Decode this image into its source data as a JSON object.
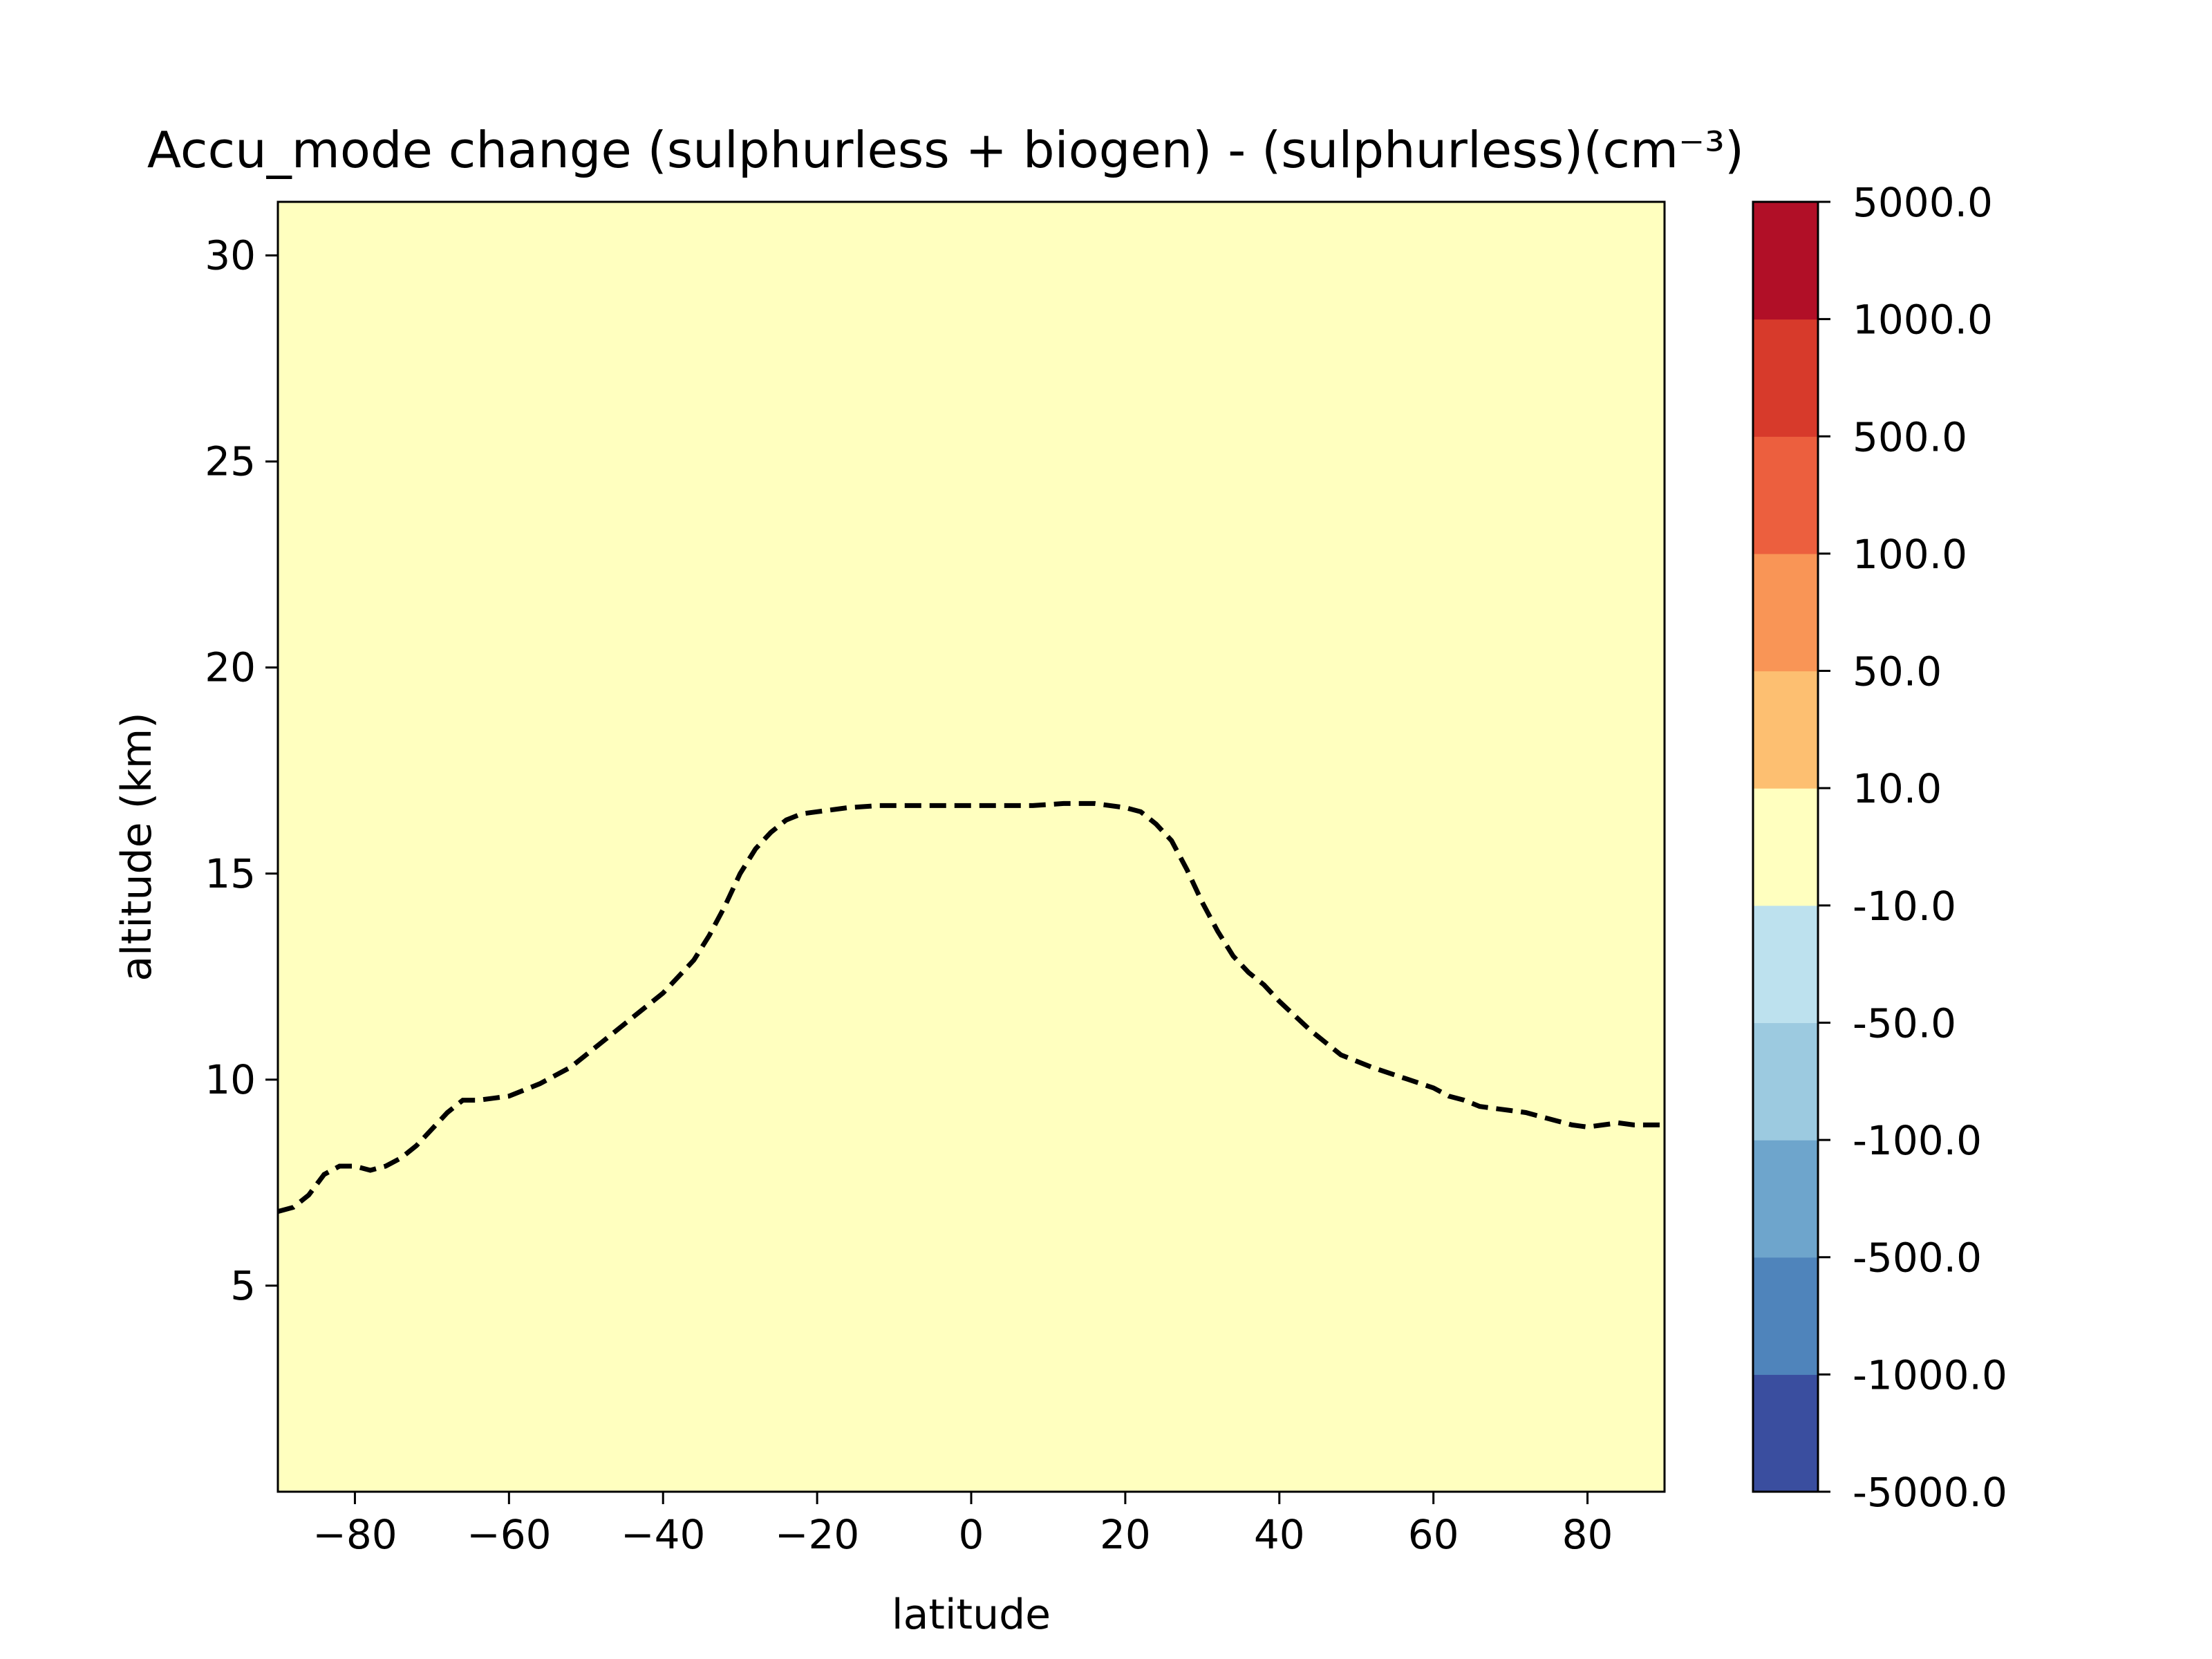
{
  "chart_data": {
    "type": "heatmap",
    "title": "Accu_mode change (sulphurless + biogen) - (sulphurless)(cm⁻³)",
    "xlabel": "latitude",
    "ylabel": "altitude (km)",
    "xlim": [
      -90,
      90
    ],
    "ylim": [
      0,
      31.3
    ],
    "xticks": [
      -80,
      -60,
      -40,
      -20,
      0,
      20,
      40,
      60,
      80
    ],
    "xtick_labels": [
      "−80",
      "−60",
      "−40",
      "−20",
      "0",
      "20",
      "40",
      "60",
      "80"
    ],
    "yticks": [
      5,
      10,
      15,
      20,
      25,
      30
    ],
    "ytick_labels": [
      "5",
      "10",
      "15",
      "20",
      "25",
      "30"
    ],
    "field_color": "#ffffbf",
    "field_level": "-10.0 to 10.0",
    "colorbar": {
      "levels": [
        "-5000.0",
        "-1000.0",
        "-500.0",
        "-100.0",
        "-50.0",
        "-10.0",
        "10.0",
        "50.0",
        "100.0",
        "500.0",
        "1000.0",
        "5000.0"
      ],
      "colors": [
        "#3a4e9f",
        "#4f84bb",
        "#6ea5cc",
        "#9ccae0",
        "#bde1ee",
        "#ffffbf",
        "#fdbf71",
        "#f99556",
        "#ec5f3e",
        "#d73a2b",
        "#b10f27"
      ]
    },
    "tropopause_line": {
      "style": "dashed",
      "color": "#000000",
      "x": [
        -90,
        -88,
        -86,
        -84,
        -82,
        -80,
        -78,
        -76,
        -74,
        -72,
        -70,
        -68,
        -66,
        -64,
        -62,
        -60,
        -56,
        -52,
        -48,
        -44,
        -40,
        -36,
        -34,
        -32,
        -30,
        -28,
        -26,
        -24,
        -22,
        -20,
        -16,
        -12,
        -8,
        -4,
        0,
        4,
        8,
        12,
        16,
        20,
        22,
        24,
        26,
        28,
        30,
        32,
        34,
        36,
        38,
        40,
        44,
        48,
        52,
        56,
        60,
        62,
        64,
        66,
        68,
        70,
        72,
        74,
        76,
        78,
        80,
        82,
        84,
        86,
        88,
        90
      ],
      "y": [
        6.8,
        6.9,
        7.2,
        7.7,
        7.9,
        7.9,
        7.8,
        7.9,
        8.1,
        8.4,
        8.8,
        9.2,
        9.5,
        9.5,
        9.55,
        9.6,
        9.9,
        10.3,
        10.9,
        11.5,
        12.1,
        12.9,
        13.5,
        14.2,
        15.0,
        15.6,
        16.0,
        16.3,
        16.45,
        16.5,
        16.6,
        16.65,
        16.65,
        16.65,
        16.65,
        16.65,
        16.65,
        16.7,
        16.7,
        16.6,
        16.5,
        16.2,
        15.8,
        15.1,
        14.3,
        13.6,
        13.0,
        12.6,
        12.3,
        11.9,
        11.2,
        10.6,
        10.3,
        10.05,
        9.8,
        9.6,
        9.5,
        9.35,
        9.3,
        9.25,
        9.2,
        9.1,
        9.0,
        8.9,
        8.85,
        8.9,
        8.95,
        8.9,
        8.9,
        8.9
      ]
    }
  }
}
